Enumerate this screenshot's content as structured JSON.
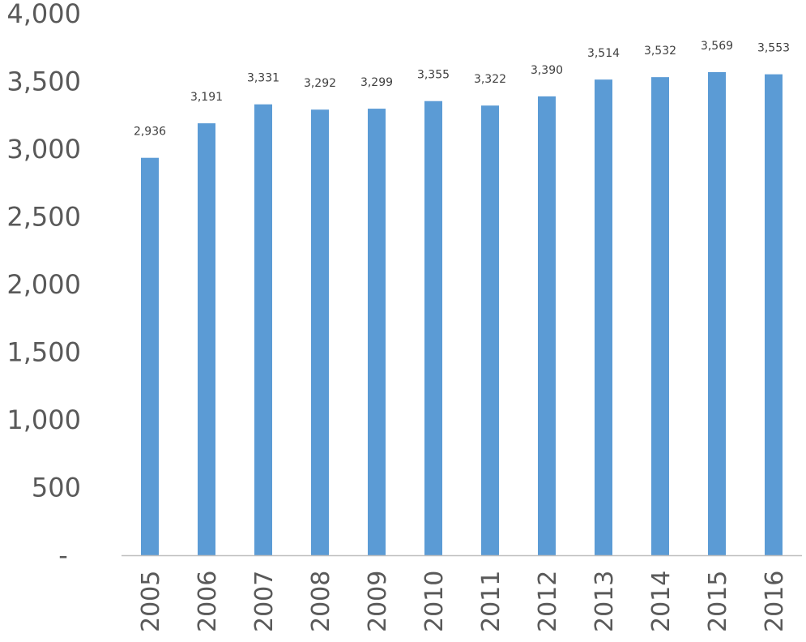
{
  "chart_data": {
    "type": "bar",
    "categories": [
      "2005",
      "2006",
      "2007",
      "2008",
      "2009",
      "2010",
      "2011",
      "2012",
      "2013",
      "2014",
      "2015",
      "2016"
    ],
    "values": [
      2936,
      3191,
      3331,
      3292,
      3299,
      3355,
      3322,
      3390,
      3514,
      3532,
      3569,
      3553
    ],
    "data_labels": [
      "2,936",
      "3,191",
      "3,331",
      "3,292",
      "3,299",
      "3,355",
      "3,322",
      "3,390",
      "3,514",
      "3,532",
      "3,569",
      "3,553"
    ],
    "y_ticks": [
      {
        "value": 0,
        "label": "-"
      },
      {
        "value": 500,
        "label": "500"
      },
      {
        "value": 1000,
        "label": "1,000"
      },
      {
        "value": 1500,
        "label": "1,500"
      },
      {
        "value": 2000,
        "label": "2,000"
      },
      {
        "value": 2500,
        "label": "2,500"
      },
      {
        "value": 3000,
        "label": "3,000"
      },
      {
        "value": 3500,
        "label": "3,500"
      },
      {
        "value": 4000,
        "label": "4,000"
      }
    ],
    "ylim": [
      0,
      4000
    ],
    "grid": false,
    "legend": "none",
    "bar_color": "#5b9bd5",
    "axis_color": "#bfbfbf",
    "title": "",
    "xlabel": "",
    "ylabel": ""
  }
}
